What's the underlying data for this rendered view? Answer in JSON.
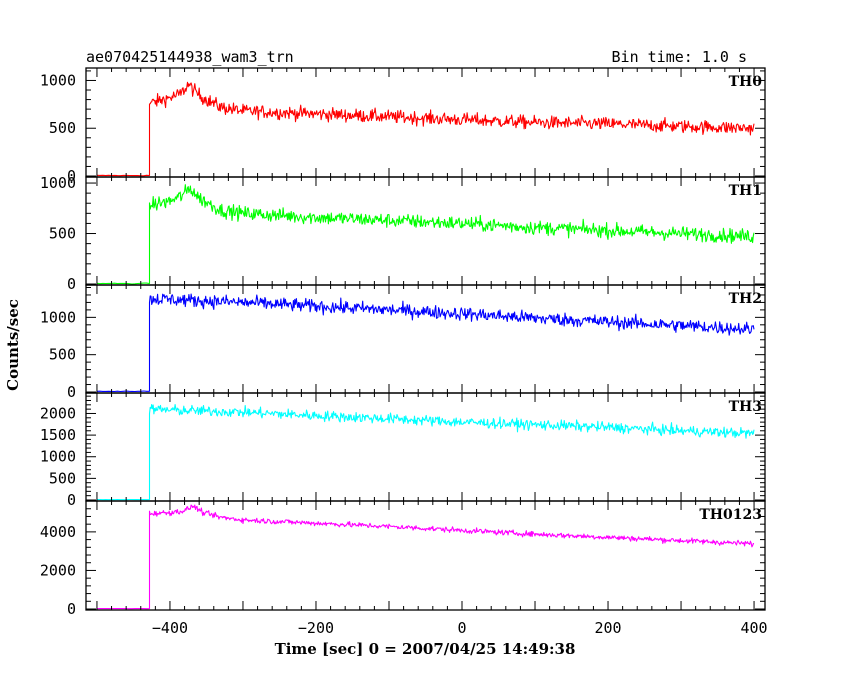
{
  "chart_data": {
    "type": "line",
    "title": "ae070425144938_wam3_trn",
    "bin_time_label": "Bin time: 1.0 s",
    "xlabel": "Time [sec] 0 = 2007/04/25 14:49:38",
    "ylabel": "Counts/sec",
    "xlim": [
      -515,
      415
    ],
    "x_ticks": [
      -400,
      -200,
      0,
      200,
      400
    ],
    "x_tick_labels": [
      "−400",
      "−200",
      "0",
      "200",
      "400"
    ],
    "grid": false,
    "panels": [
      {
        "name": "TH0",
        "color": "#ff0000",
        "ylim": [
          0,
          1120
        ],
        "y_ticks": [
          0,
          500,
          1000
        ],
        "y_tick_labels": [
          "0",
          "500",
          "1000"
        ],
        "x_start": -500,
        "x_end": 400,
        "onset": -428,
        "pre_level": 5,
        "profile": [
          [
            -428,
            760
          ],
          [
            -400,
            820
          ],
          [
            -385,
            860
          ],
          [
            -375,
            960
          ],
          [
            -368,
            900
          ],
          [
            -355,
            820
          ],
          [
            -330,
            720
          ],
          [
            -300,
            680
          ],
          [
            -200,
            650
          ],
          [
            -100,
            620
          ],
          [
            0,
            590
          ],
          [
            100,
            560
          ],
          [
            200,
            545
          ],
          [
            300,
            520
          ],
          [
            400,
            500
          ]
        ],
        "noise": 35
      },
      {
        "name": "TH1",
        "color": "#00ff00",
        "ylim": [
          0,
          1050
        ],
        "y_ticks": [
          0,
          500,
          1000
        ],
        "y_tick_labels": [
          "0",
          "500",
          "1000"
        ],
        "x_start": -500,
        "x_end": 400,
        "onset": -428,
        "pre_level": 5,
        "profile": [
          [
            -428,
            780
          ],
          [
            -400,
            820
          ],
          [
            -385,
            870
          ],
          [
            -372,
            950
          ],
          [
            -360,
            850
          ],
          [
            -330,
            730
          ],
          [
            -300,
            700
          ],
          [
            -200,
            660
          ],
          [
            -100,
            630
          ],
          [
            0,
            600
          ],
          [
            100,
            560
          ],
          [
            200,
            530
          ],
          [
            300,
            500
          ],
          [
            400,
            470
          ]
        ],
        "noise": 35
      },
      {
        "name": "TH2",
        "color": "#0000ff",
        "ylim": [
          0,
          1420
        ],
        "y_ticks": [
          0,
          500,
          1000
        ],
        "y_tick_labels": [
          "0",
          "500",
          "1000"
        ],
        "x_start": -500,
        "x_end": 400,
        "onset": -428,
        "pre_level": 10,
        "profile": [
          [
            -428,
            1250
          ],
          [
            -400,
            1240
          ],
          [
            -300,
            1200
          ],
          [
            -200,
            1150
          ],
          [
            -100,
            1100
          ],
          [
            0,
            1050
          ],
          [
            100,
            990
          ],
          [
            200,
            940
          ],
          [
            300,
            890
          ],
          [
            400,
            840
          ]
        ],
        "noise": 45
      },
      {
        "name": "TH3",
        "color": "#00ffff",
        "ylim": [
          0,
          2450
        ],
        "y_ticks": [
          0,
          500,
          1000,
          1500,
          2000
        ],
        "y_tick_labels": [
          "0",
          "500",
          "1000",
          "1500",
          "2000"
        ],
        "x_start": -500,
        "x_end": 400,
        "onset": -428,
        "pre_level": 10,
        "profile": [
          [
            -428,
            2100
          ],
          [
            -400,
            2080
          ],
          [
            -300,
            2030
          ],
          [
            -200,
            1950
          ],
          [
            -100,
            1880
          ],
          [
            0,
            1800
          ],
          [
            100,
            1740
          ],
          [
            200,
            1680
          ],
          [
            300,
            1600
          ],
          [
            400,
            1540
          ]
        ],
        "noise": 60
      },
      {
        "name": "TH0123",
        "color": "#ff00ff",
        "ylim": [
          0,
          5550
        ],
        "y_ticks": [
          0,
          2000,
          4000
        ],
        "y_tick_labels": [
          "0",
          "2000",
          "4000"
        ],
        "x_start": -500,
        "x_end": 400,
        "onset": -428,
        "pre_level": 20,
        "profile": [
          [
            -428,
            4950
          ],
          [
            -400,
            5000
          ],
          [
            -380,
            5100
          ],
          [
            -368,
            5350
          ],
          [
            -355,
            5000
          ],
          [
            -330,
            4750
          ],
          [
            -300,
            4620
          ],
          [
            -200,
            4450
          ],
          [
            -100,
            4280
          ],
          [
            0,
            4080
          ],
          [
            100,
            3880
          ],
          [
            200,
            3720
          ],
          [
            300,
            3550
          ],
          [
            400,
            3380
          ]
        ],
        "noise": 70
      }
    ]
  }
}
